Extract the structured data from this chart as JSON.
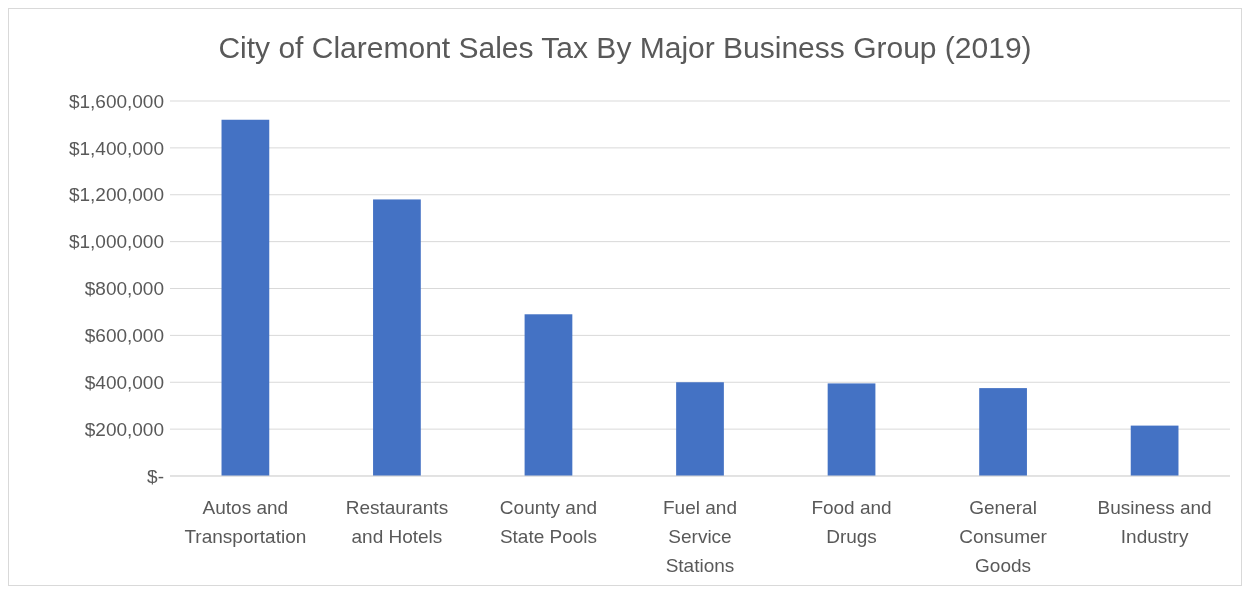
{
  "chart_data": {
    "type": "bar",
    "title": "City of Claremont Sales Tax By Major Business Group (2019)",
    "categories": [
      "Autos and Transportation",
      "Restaurants and Hotels",
      "County and State Pools",
      "Fuel and Service Stations",
      "Food and Drugs",
      "General Consumer Goods",
      "Business and Industry"
    ],
    "values": [
      1520000,
      1180000,
      690000,
      400000,
      395000,
      375000,
      215000
    ],
    "color": "#4472c4",
    "ylim": [
      0,
      1600000
    ],
    "yticks": [
      {
        "value": 0,
        "label": "$-"
      },
      {
        "value": 200000,
        "label": "$200,000"
      },
      {
        "value": 400000,
        "label": "$400,000"
      },
      {
        "value": 600000,
        "label": "$600,000"
      },
      {
        "value": 800000,
        "label": "$800,000"
      },
      {
        "value": 1000000,
        "label": "$1,000,000"
      },
      {
        "value": 1200000,
        "label": "$1,200,000"
      },
      {
        "value": 1400000,
        "label": "$1,400,000"
      },
      {
        "value": 1600000,
        "label": "$1,600,000"
      }
    ],
    "grid": "y"
  }
}
